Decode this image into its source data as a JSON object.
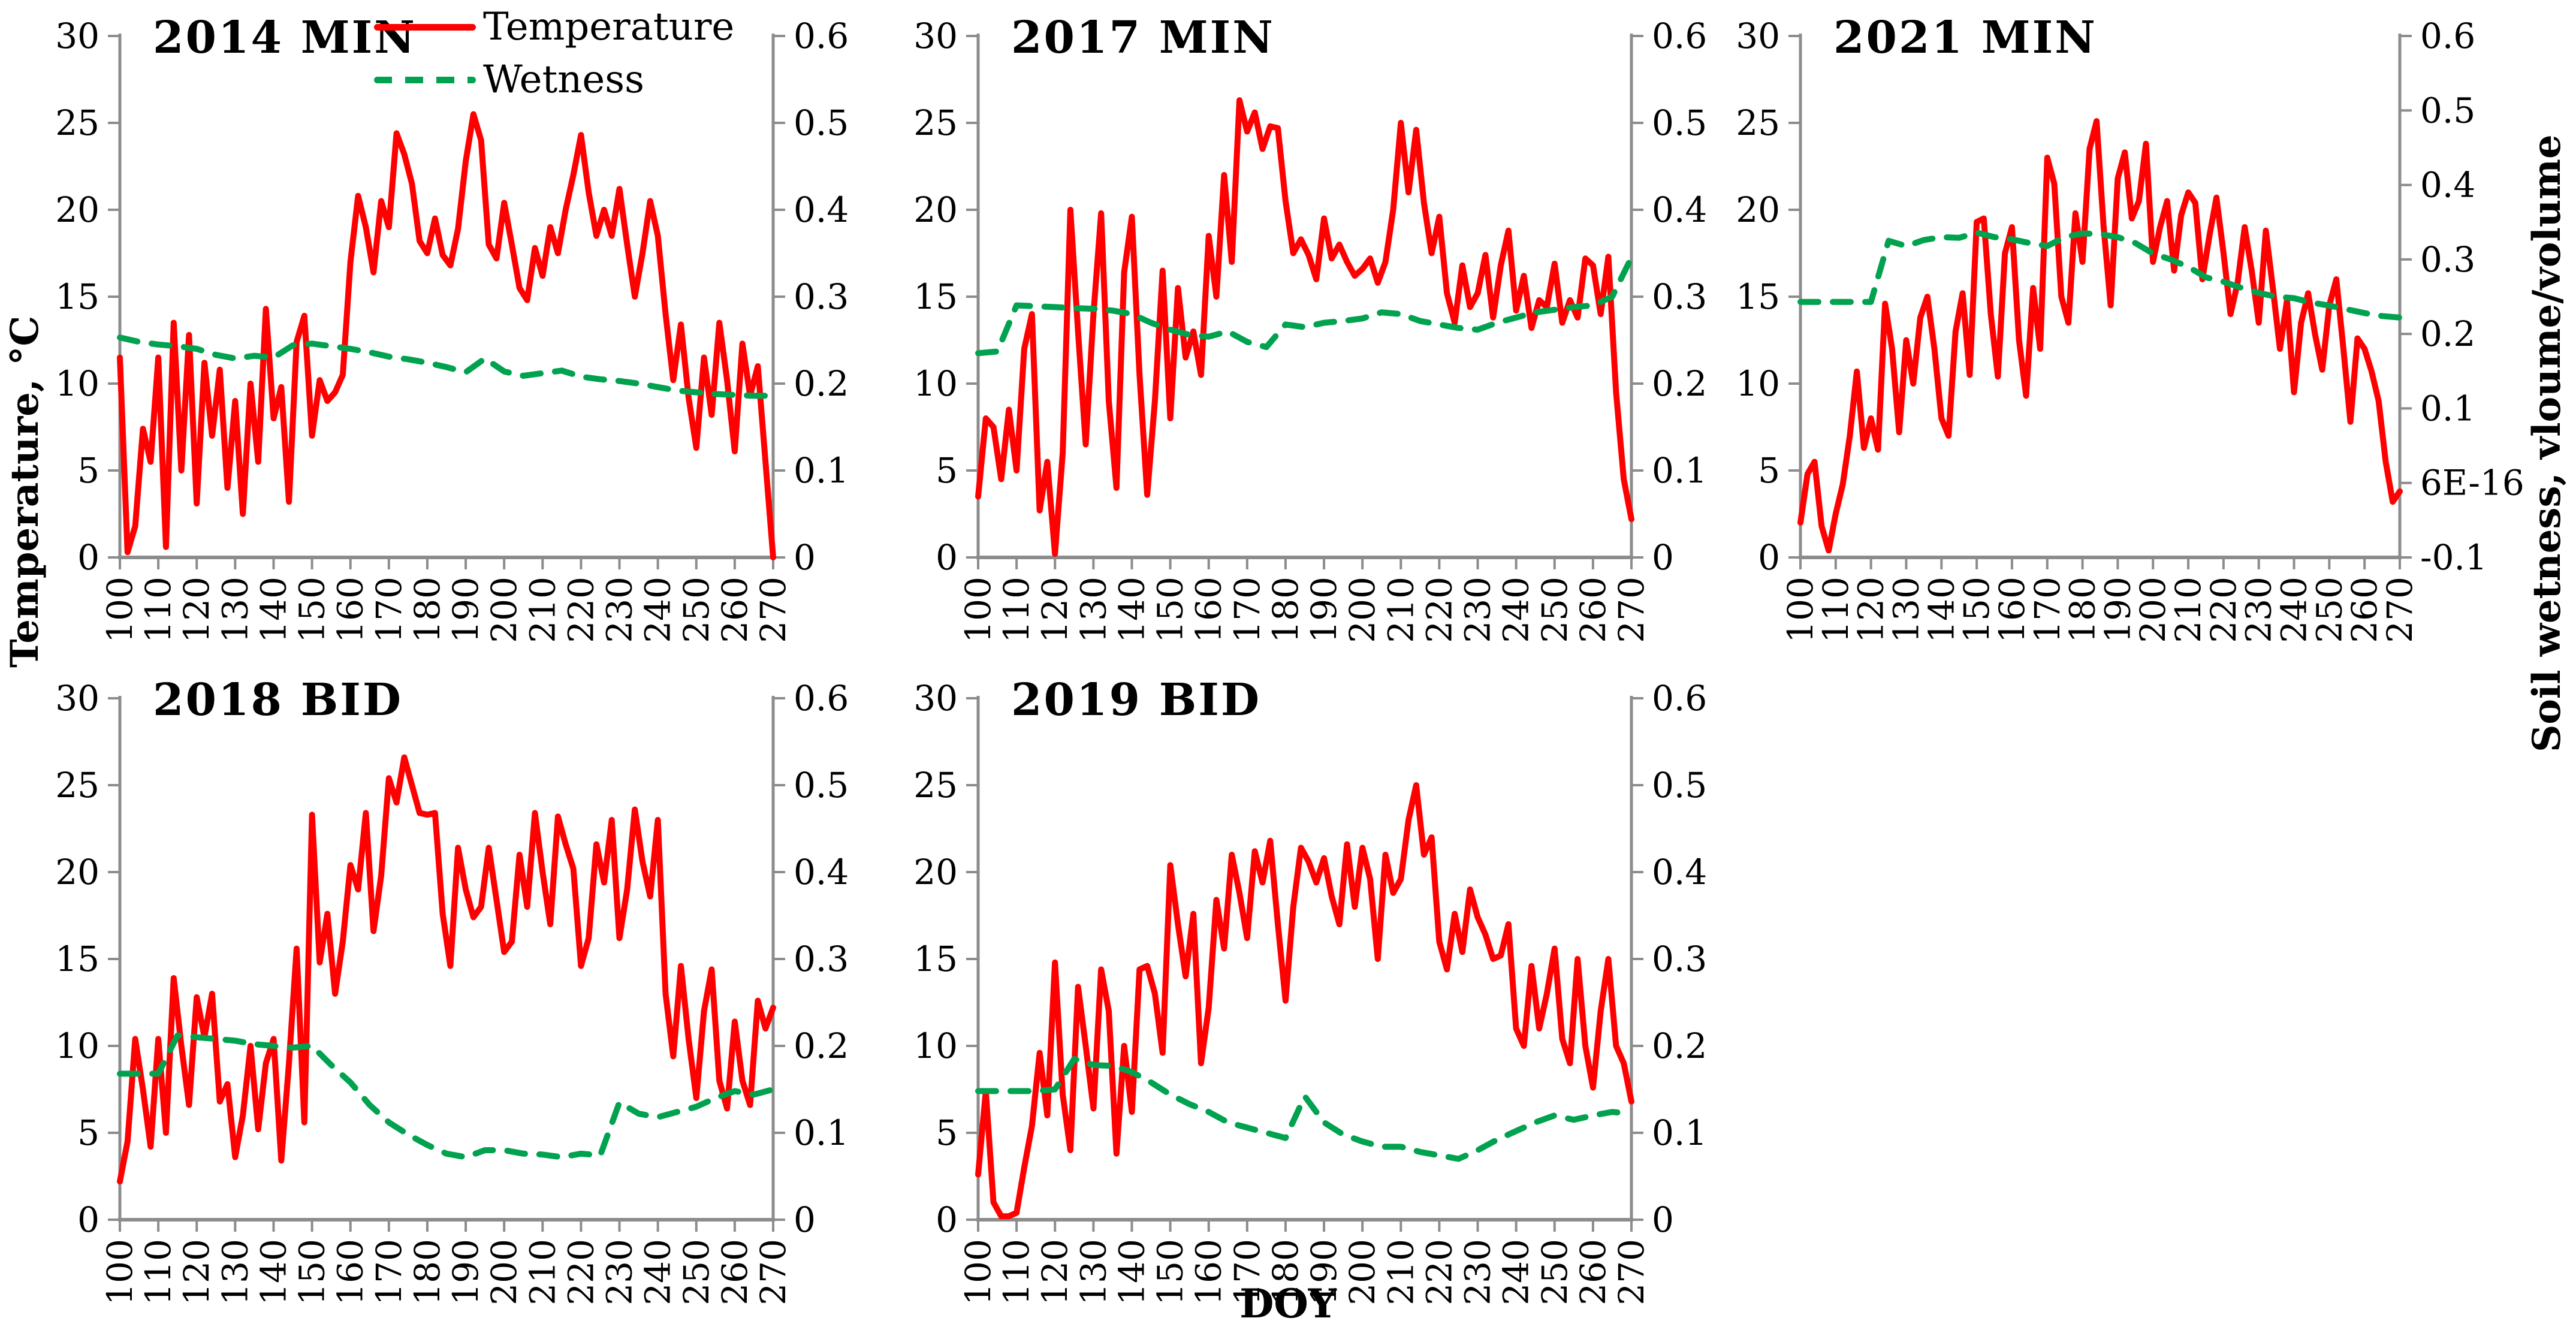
{
  "figure": {
    "xlabel": "DOY",
    "ylabel_left": "Temperature, °C",
    "ylabel_right": "Soil wetness, vloume/volume",
    "legend": {
      "temperature": "Temperature",
      "wetness": "Wetness"
    },
    "colors": {
      "temperature": "#ff0000",
      "wetness": "#00a24f",
      "axis": "#8c8c8c",
      "text": "#000000"
    }
  },
  "chart_data": [
    {
      "type": "line",
      "title": "2014 MIN",
      "x_axis": {
        "range": [
          100,
          270
        ],
        "ticks": [
          100,
          110,
          120,
          130,
          140,
          150,
          160,
          170,
          180,
          190,
          200,
          210,
          220,
          230,
          240,
          250,
          260,
          270
        ]
      },
      "y_left": {
        "range": [
          0,
          30
        ],
        "ticks": [
          30,
          25,
          20,
          15,
          10,
          5,
          0
        ]
      },
      "y_right": {
        "range": [
          0,
          0.6
        ],
        "tick_labels": [
          "0.6",
          "0.5",
          "0.4",
          "0.3",
          "0.2",
          "0.1",
          "0"
        ]
      },
      "series": [
        {
          "name": "Temperature",
          "axis": "left",
          "x_start": 100,
          "x_step": 2,
          "values": [
            11.5,
            0.3,
            1.8,
            7.4,
            5.5,
            11.5,
            0.6,
            13.5,
            5.0,
            12.8,
            3.1,
            11.2,
            7.0,
            10.8,
            4.0,
            9.0,
            2.5,
            10.0,
            5.5,
            14.3,
            8.0,
            9.8,
            3.2,
            12.4,
            13.9,
            7.0,
            10.2,
            9.0,
            9.5,
            10.5,
            17.0,
            20.8,
            19.0,
            16.4,
            20.5,
            19.0,
            24.4,
            23.2,
            21.5,
            18.2,
            17.5,
            19.5,
            17.4,
            16.8,
            18.9,
            22.8,
            25.5,
            24.0,
            18.0,
            17.2,
            20.4,
            18.0,
            15.5,
            14.8,
            17.8,
            16.2,
            19.0,
            17.5,
            20.0,
            22.0,
            24.3,
            21.0,
            18.5,
            20.0,
            18.5,
            21.2,
            18.0,
            15.0,
            17.5,
            20.5,
            18.5,
            14.0,
            10.2,
            13.4,
            9.2,
            6.3,
            11.5,
            8.2,
            13.5,
            10.2,
            6.1,
            12.3,
            9.3,
            11.0,
            5.5,
            0.0
          ]
        },
        {
          "name": "Wetness",
          "axis": "right",
          "x_start": 100,
          "x_step": 5,
          "values": [
            0.253,
            0.248,
            0.245,
            0.243,
            0.24,
            0.233,
            0.229,
            0.232,
            0.23,
            0.244,
            0.246,
            0.243,
            0.24,
            0.236,
            0.231,
            0.228,
            0.224,
            0.219,
            0.213,
            0.229,
            0.214,
            0.209,
            0.212,
            0.215,
            0.208,
            0.205,
            0.203,
            0.2,
            0.196,
            0.192,
            0.19,
            0.188,
            0.187,
            0.186,
            0.186
          ]
        }
      ]
    },
    {
      "type": "line",
      "title": "2017 MIN",
      "x_axis": {
        "range": [
          100,
          270
        ],
        "ticks": [
          100,
          110,
          120,
          130,
          140,
          150,
          160,
          170,
          180,
          190,
          200,
          210,
          220,
          230,
          240,
          250,
          260,
          270
        ]
      },
      "y_left": {
        "range": [
          0,
          30
        ],
        "ticks": [
          30,
          25,
          20,
          15,
          10,
          5,
          0
        ]
      },
      "y_right": {
        "range": [
          0,
          0.6
        ],
        "tick_labels": [
          "0.6",
          "0.5",
          "0.4",
          "0.3",
          "0.2",
          "0.1",
          "0"
        ]
      },
      "series": [
        {
          "name": "Temperature",
          "axis": "left",
          "x_start": 100,
          "x_step": 2,
          "values": [
            3.5,
            8.0,
            7.5,
            4.5,
            8.5,
            5.0,
            12.0,
            14.0,
            2.7,
            5.5,
            0.2,
            6.0,
            20.0,
            13.0,
            6.5,
            14.0,
            19.8,
            9.0,
            4.0,
            16.4,
            19.6,
            10.5,
            3.6,
            9.0,
            16.5,
            8.0,
            15.5,
            11.5,
            13.0,
            10.5,
            18.5,
            15.0,
            22.0,
            17.0,
            26.3,
            24.5,
            25.6,
            23.5,
            24.8,
            24.7,
            20.5,
            17.5,
            18.3,
            17.4,
            16.0,
            19.5,
            17.2,
            18.0,
            17.0,
            16.2,
            16.6,
            17.2,
            15.8,
            17.0,
            20.0,
            25.0,
            21.0,
            24.6,
            20.4,
            17.5,
            19.6,
            15.2,
            13.5,
            16.8,
            14.4,
            15.2,
            17.4,
            13.8,
            16.8,
            18.8,
            14.2,
            16.2,
            13.2,
            14.8,
            14.4,
            16.9,
            13.5,
            14.8,
            13.8,
            17.2,
            16.8,
            14.0,
            17.3,
            9.5,
            4.5,
            2.2
          ]
        },
        {
          "name": "Wetness",
          "axis": "right",
          "x_start": 100,
          "x_step": 5,
          "values": [
            0.235,
            0.237,
            0.29,
            0.289,
            0.288,
            0.287,
            0.286,
            0.284,
            0.28,
            0.27,
            0.262,
            0.256,
            0.254,
            0.26,
            0.248,
            0.242,
            0.268,
            0.265,
            0.27,
            0.272,
            0.275,
            0.282,
            0.28,
            0.272,
            0.268,
            0.264,
            0.262,
            0.27,
            0.276,
            0.282,
            0.285,
            0.288,
            0.29,
            0.3,
            0.345
          ]
        }
      ]
    },
    {
      "type": "line",
      "title": "2021 MIN",
      "x_axis": {
        "range": [
          100,
          270
        ],
        "ticks": [
          100,
          110,
          120,
          130,
          140,
          150,
          160,
          170,
          180,
          190,
          200,
          210,
          220,
          230,
          240,
          250,
          260,
          270
        ]
      },
      "y_left": {
        "range": [
          0,
          30
        ],
        "ticks": [
          30,
          25,
          20,
          15,
          10,
          5,
          0
        ]
      },
      "y_right": {
        "range": [
          -0.1,
          0.6
        ],
        "tick_labels": [
          "0.6",
          "0.5",
          "0.4",
          "0.3",
          "0.2",
          "0.1",
          "6E-16",
          "-0.1"
        ]
      },
      "series": [
        {
          "name": "Temperature",
          "axis": "left",
          "x_start": 100,
          "x_step": 2,
          "values": [
            2.0,
            4.8,
            5.5,
            1.8,
            0.4,
            2.5,
            4.2,
            7.0,
            10.7,
            6.3,
            8.0,
            6.2,
            14.6,
            12.0,
            7.2,
            12.5,
            10.0,
            13.8,
            15.0,
            12.0,
            8.0,
            7.0,
            13.0,
            15.2,
            10.5,
            19.3,
            19.5,
            14.0,
            10.4,
            17.5,
            19.0,
            12.5,
            9.3,
            15.5,
            12.0,
            23.0,
            21.5,
            15.0,
            13.5,
            19.8,
            17.0,
            23.5,
            25.1,
            19.0,
            14.5,
            21.8,
            23.3,
            19.5,
            20.5,
            23.8,
            17.0,
            19.0,
            20.5,
            16.5,
            19.7,
            21.0,
            20.4,
            16.0,
            18.5,
            20.7,
            17.5,
            14.0,
            15.8,
            19.0,
            16.5,
            13.5,
            18.8,
            15.5,
            12.0,
            14.8,
            9.5,
            13.5,
            15.2,
            12.8,
            10.8,
            14.5,
            16.0,
            12.0,
            7.8,
            12.6,
            12.0,
            10.7,
            9.0,
            5.5,
            3.2,
            3.8
          ]
        },
        {
          "name": "Wetness",
          "axis": "right",
          "x_start": 100,
          "x_step": 5,
          "values": [
            0.243,
            0.243,
            0.243,
            0.243,
            0.243,
            0.325,
            0.318,
            0.326,
            0.33,
            0.329,
            0.336,
            0.33,
            0.327,
            0.322,
            0.318,
            0.33,
            0.335,
            0.334,
            0.33,
            0.322,
            0.308,
            0.3,
            0.29,
            0.276,
            0.27,
            0.262,
            0.255,
            0.25,
            0.248,
            0.242,
            0.238,
            0.233,
            0.228,
            0.224,
            0.222
          ]
        }
      ]
    },
    {
      "type": "line",
      "title": "2018 BID",
      "x_axis": {
        "range": [
          100,
          270
        ],
        "ticks": [
          100,
          110,
          120,
          130,
          140,
          150,
          160,
          170,
          180,
          190,
          200,
          210,
          220,
          230,
          240,
          250,
          260,
          270
        ]
      },
      "y_left": {
        "range": [
          0,
          30
        ],
        "ticks": [
          30,
          25,
          20,
          15,
          10,
          5,
          0
        ]
      },
      "y_right": {
        "range": [
          0,
          0.6
        ],
        "tick_labels": [
          "0.6",
          "0.5",
          "0.4",
          "0.3",
          "0.2",
          "0.1",
          "0"
        ]
      },
      "series": [
        {
          "name": "Temperature",
          "axis": "left",
          "x_start": 100,
          "x_step": 2,
          "values": [
            2.2,
            4.5,
            10.4,
            7.5,
            4.2,
            10.4,
            5.0,
            13.9,
            10.0,
            6.6,
            12.8,
            10.5,
            13.0,
            6.8,
            7.8,
            3.6,
            6.0,
            10.0,
            5.2,
            9.0,
            10.4,
            3.4,
            9.0,
            15.6,
            5.6,
            23.3,
            14.8,
            17.6,
            13.0,
            16.0,
            20.4,
            19.0,
            23.4,
            16.6,
            19.8,
            25.4,
            24.0,
            26.6,
            25.0,
            23.4,
            23.3,
            23.4,
            17.6,
            14.6,
            21.4,
            19.0,
            17.4,
            18.0,
            21.4,
            18.4,
            15.4,
            16.0,
            21.0,
            18.0,
            23.4,
            20.0,
            17.0,
            23.2,
            21.6,
            20.2,
            14.6,
            16.2,
            21.6,
            19.4,
            23.0,
            16.2,
            19.0,
            23.6,
            20.6,
            18.6,
            23.0,
            13.0,
            9.4,
            14.6,
            10.4,
            7.0,
            12.0,
            14.4,
            8.0,
            6.4,
            11.4,
            8.0,
            6.6,
            12.6,
            11.0,
            12.2
          ]
        },
        {
          "name": "Wetness",
          "axis": "right",
          "x_start": 100,
          "x_step": 5,
          "values": [
            0.168,
            0.168,
            0.168,
            0.212,
            0.21,
            0.208,
            0.206,
            0.202,
            0.2,
            0.198,
            0.2,
            0.178,
            0.158,
            0.132,
            0.112,
            0.098,
            0.086,
            0.076,
            0.072,
            0.08,
            0.08,
            0.076,
            0.075,
            0.072,
            0.076,
            0.074,
            0.135,
            0.122,
            0.118,
            0.124,
            0.13,
            0.14,
            0.148,
            0.144,
            0.15
          ]
        }
      ]
    },
    {
      "type": "line",
      "title": "2019 BID",
      "x_axis": {
        "range": [
          100,
          270
        ],
        "ticks": [
          100,
          110,
          120,
          130,
          140,
          150,
          160,
          170,
          180,
          190,
          200,
          210,
          220,
          230,
          240,
          250,
          260,
          270
        ]
      },
      "y_left": {
        "range": [
          0,
          30
        ],
        "ticks": [
          30,
          25,
          20,
          15,
          10,
          5,
          0
        ]
      },
      "y_right": {
        "range": [
          0,
          0.6
        ],
        "tick_labels": [
          "0.6",
          "0.5",
          "0.4",
          "0.3",
          "0.2",
          "0.1",
          "0"
        ]
      },
      "series": [
        {
          "name": "Temperature",
          "axis": "left",
          "x_start": 100,
          "x_step": 2,
          "values": [
            2.6,
            7.4,
            1.0,
            0.2,
            0.2,
            0.4,
            3.0,
            5.4,
            9.6,
            6.0,
            14.8,
            7.2,
            4.0,
            13.4,
            10.0,
            6.4,
            14.4,
            12.0,
            3.8,
            10.0,
            6.2,
            14.4,
            14.6,
            13.0,
            9.6,
            20.4,
            17.0,
            14.0,
            17.6,
            9.0,
            12.2,
            18.4,
            15.6,
            21.0,
            18.8,
            16.2,
            21.2,
            19.4,
            21.8,
            17.0,
            12.6,
            18.0,
            21.4,
            20.6,
            19.4,
            20.8,
            18.6,
            17.0,
            21.6,
            18.0,
            21.4,
            19.6,
            15.0,
            21.0,
            18.8,
            19.6,
            23.0,
            25.0,
            21.0,
            22.0,
            16.0,
            14.4,
            17.6,
            15.4,
            19.0,
            17.4,
            16.4,
            15.0,
            15.2,
            17.0,
            11.0,
            10.0,
            14.6,
            11.0,
            13.0,
            15.6,
            10.4,
            9.0,
            15.0,
            10.0,
            7.6,
            12.0,
            15.0,
            10.0,
            9.0,
            6.8
          ]
        },
        {
          "name": "Wetness",
          "axis": "right",
          "x_start": 100,
          "x_step": 5,
          "values": [
            0.148,
            0.148,
            0.148,
            0.148,
            0.15,
            0.185,
            0.178,
            0.177,
            0.17,
            0.158,
            0.144,
            0.133,
            0.124,
            0.112,
            0.106,
            0.1,
            0.094,
            0.142,
            0.112,
            0.098,
            0.09,
            0.084,
            0.084,
            0.078,
            0.074,
            0.07,
            0.08,
            0.092,
            0.102,
            0.112,
            0.12,
            0.115,
            0.12,
            0.124,
            0.122
          ]
        }
      ]
    }
  ]
}
